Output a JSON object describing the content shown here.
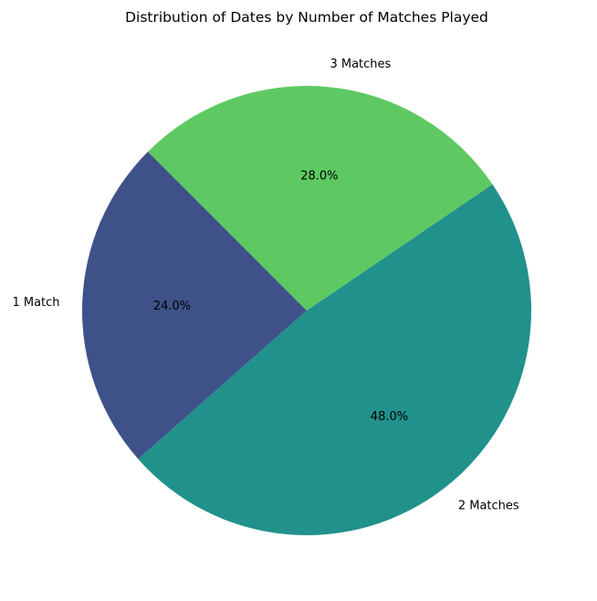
{
  "chart_data": {
    "type": "pie",
    "title": "Distribution of Dates by Number of Matches Played",
    "slices": [
      {
        "label": "1 Match",
        "value": 24.0,
        "pct_label": "24.0%",
        "color": "#3e5289"
      },
      {
        "label": "2 Matches",
        "value": 48.0,
        "pct_label": "48.0%",
        "color": "#21918c"
      },
      {
        "label": "3 Matches",
        "value": 28.0,
        "pct_label": "28.0%",
        "color": "#5ec962"
      }
    ],
    "start_angle_deg": 135,
    "direction": "counterclockwise",
    "legend": "none"
  }
}
